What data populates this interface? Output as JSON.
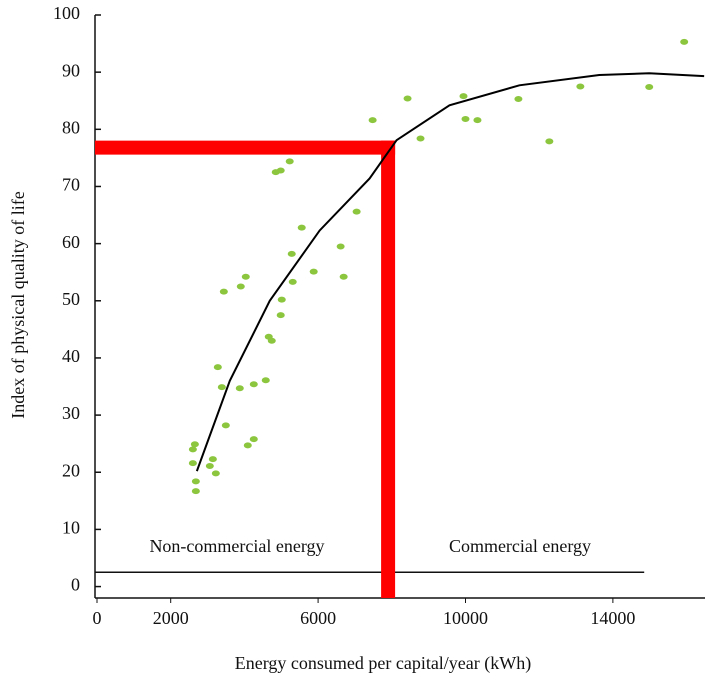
{
  "chart_data": {
    "type": "scatter",
    "x_label": "Energy consumed per capital/year (kWh)",
    "y_label": "Index of physical quality of life",
    "xlim": [
      0,
      16500
    ],
    "ylim": [
      -2,
      100
    ],
    "xticks": [
      0,
      2000,
      6000,
      10000,
      14000
    ],
    "yticks": [
      0,
      10,
      20,
      30,
      40,
      50,
      60,
      70,
      80,
      90,
      100
    ],
    "color": "#8cc63f",
    "x": [
      2656,
      2602,
      2602,
      2683,
      2683,
      3062,
      3144,
      3225,
      3279,
      3388,
      3496,
      3442,
      3875,
      3902,
      4038,
      4092,
      4255,
      4255,
      4580,
      4661,
      4743,
      4851,
      4986,
      4986,
      5014,
      5230,
      5285,
      5312,
      5556,
      5881,
      6612,
      6694,
      7046,
      7480,
      8428,
      8780,
      9946,
      10000,
      10325,
      11436,
      12276,
      13117,
      14986,
      15935
    ],
    "values": [
      24.9,
      24.0,
      21.6,
      18.4,
      16.7,
      21.1,
      22.3,
      19.8,
      38.4,
      34.9,
      28.2,
      51.6,
      34.7,
      52.5,
      54.2,
      24.7,
      25.8,
      35.4,
      36.1,
      43.7,
      43.0,
      72.5,
      72.8,
      47.5,
      50.2,
      74.4,
      58.2,
      53.3,
      62.8,
      55.1,
      59.5,
      54.2,
      65.6,
      81.6,
      85.4,
      78.4,
      85.8,
      81.8,
      81.6,
      85.3,
      77.9,
      87.5,
      87.4,
      95.3
    ],
    "trend": {
      "color": "#000000",
      "x": [
        2710,
        3604,
        4688,
        6043,
        7398,
        8130,
        9566,
        11463,
        13631,
        14986,
        16477
      ],
      "values": [
        20.2,
        36,
        50,
        62.3,
        71.4,
        78.1,
        84.2,
        87.7,
        89.5,
        89.8,
        89.3
      ]
    },
    "reference": {
      "x": 7900,
      "y": 76.8,
      "color": "#ff0000"
    },
    "baseline": {
      "y": 2.5,
      "x_end": 14850
    },
    "annotations": [
      "Non-commercial energy",
      "Commercial energy"
    ]
  }
}
